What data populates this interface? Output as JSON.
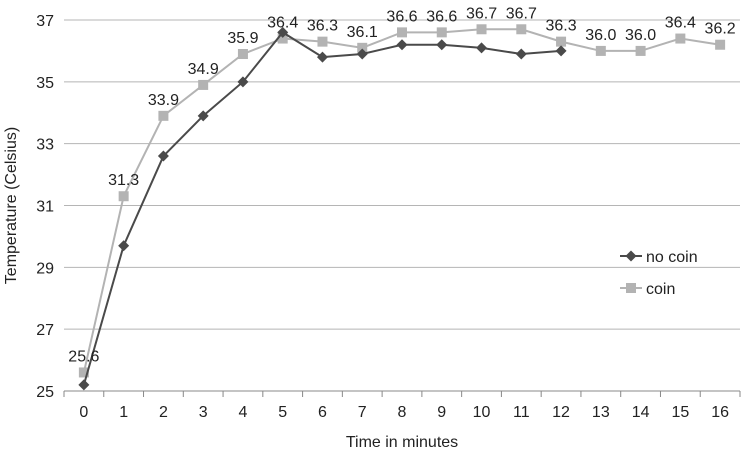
{
  "chart_data": {
    "type": "line",
    "xlabel": "Time in minutes",
    "ylabel": "Temperature (Celsius)",
    "x": [
      0,
      1,
      2,
      3,
      4,
      5,
      6,
      7,
      8,
      9,
      10,
      11,
      12,
      13,
      14,
      15,
      16
    ],
    "ylim": [
      25,
      37
    ],
    "yticks": [
      25,
      27,
      29,
      31,
      33,
      35,
      37
    ],
    "grid": "horizontal",
    "legend_position": "right",
    "series": [
      {
        "name": "no coin",
        "color": "#4a4a4a",
        "marker": "diamond",
        "x": [
          0,
          1,
          2,
          3,
          4,
          5,
          6,
          7,
          8,
          9,
          10,
          11,
          12
        ],
        "values": [
          25.2,
          29.7,
          32.6,
          33.9,
          35.0,
          36.6,
          35.8,
          35.9,
          36.2,
          36.2,
          36.1,
          35.9,
          36.0
        ],
        "show_labels": false
      },
      {
        "name": "coin",
        "color": "#b3b3b3",
        "marker": "square",
        "x": [
          0,
          1,
          2,
          3,
          4,
          5,
          6,
          7,
          8,
          9,
          10,
          11,
          12,
          13,
          14,
          15,
          16
        ],
        "values": [
          25.6,
          31.3,
          33.9,
          34.9,
          35.9,
          36.4,
          36.3,
          36.1,
          36.6,
          36.6,
          36.7,
          36.7,
          36.3,
          36.0,
          36.0,
          36.4,
          36.2
        ],
        "data_labels": [
          "25.6",
          "31.3",
          "33.9",
          "34.9",
          "35.9",
          "36.4",
          "36.3",
          "36.1",
          "36.6",
          "36.6",
          "36.7",
          "36.7",
          "36.3",
          "36.0",
          "36.0",
          "36.4",
          "36.2"
        ],
        "show_labels": true
      }
    ]
  }
}
